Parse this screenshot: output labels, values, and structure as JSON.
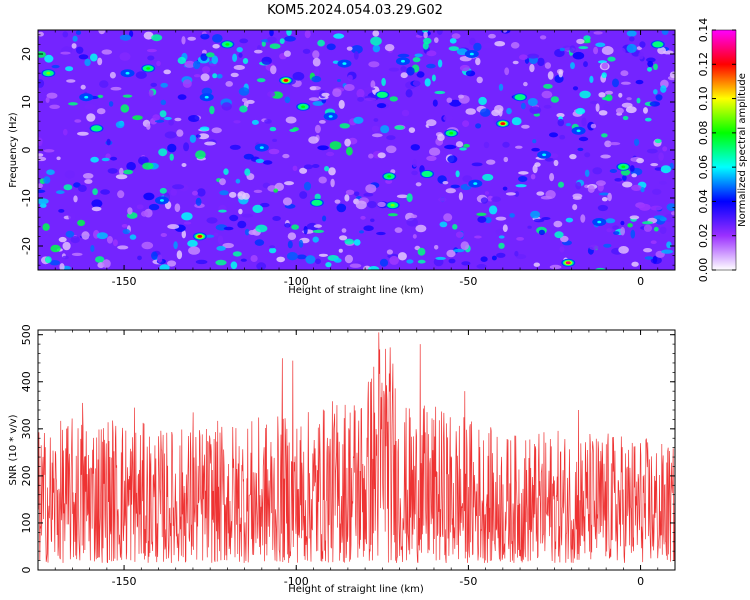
{
  "chart_data": [
    {
      "type": "heatmap",
      "title": "KOM5.2024.054.03.29.G02",
      "xlabel": "Height of straight line (km)",
      "ylabel": "Frequency (Hz)",
      "xlim": [
        -175,
        10
      ],
      "ylim": [
        -25,
        25
      ],
      "x_ticks": [
        -150,
        -100,
        -50,
        0
      ],
      "x_tick_labels": [
        "-150",
        "-100",
        "-50",
        "0"
      ],
      "y_ticks": [
        -20,
        -10,
        0,
        10,
        20
      ],
      "y_tick_labels": [
        "-20",
        "-10",
        "0",
        "10",
        "20"
      ],
      "colorbar": {
        "label": "Normalized spectral amplitude",
        "range": [
          0,
          0.14
        ],
        "ticks": [
          0,
          0.02,
          0.04,
          0.06,
          0.08,
          0.1,
          0.12,
          0.14
        ],
        "tick_labels": [
          "0.00",
          "0.02",
          "0.04",
          "0.06",
          "0.08",
          "0.10",
          "0.12",
          "0.14"
        ],
        "colors": [
          "#ffffff",
          "#9b30ff",
          "#0000ff",
          "#00ffff",
          "#00ff00",
          "#ffff00",
          "#ff0000",
          "#ff00ff"
        ]
      },
      "background_level": 0.025,
      "hotspots": [
        {
          "x": -172,
          "y": 16.0,
          "value": 0.09
        },
        {
          "x": -161,
          "y": 11.0,
          "value": 0.06
        },
        {
          "x": -158,
          "y": 4.5,
          "value": 0.07
        },
        {
          "x": -149,
          "y": 16.0,
          "value": 0.06
        },
        {
          "x": -143,
          "y": 17.0,
          "value": 0.08
        },
        {
          "x": -139,
          "y": -10.5,
          "value": 0.06
        },
        {
          "x": -128,
          "y": -18.0,
          "value": 0.12
        },
        {
          "x": -126,
          "y": 11.0,
          "value": 0.06
        },
        {
          "x": -120,
          "y": 22.0,
          "value": 0.08
        },
        {
          "x": -110,
          "y": 0.5,
          "value": 0.06
        },
        {
          "x": -103,
          "y": 14.5,
          "value": 0.12
        },
        {
          "x": -98,
          "y": 9.0,
          "value": 0.08
        },
        {
          "x": -94,
          "y": -11.0,
          "value": 0.07
        },
        {
          "x": -90,
          "y": 7.0,
          "value": 0.06
        },
        {
          "x": -86,
          "y": 18.0,
          "value": 0.06
        },
        {
          "x": -75,
          "y": 11.5,
          "value": 0.07
        },
        {
          "x": -73,
          "y": -5.5,
          "value": 0.08
        },
        {
          "x": -72,
          "y": -11.5,
          "value": 0.09
        },
        {
          "x": -69,
          "y": 18.5,
          "value": 0.06
        },
        {
          "x": -62,
          "y": -5.0,
          "value": 0.07
        },
        {
          "x": -55,
          "y": 3.5,
          "value": 0.08
        },
        {
          "x": -49,
          "y": 20.0,
          "value": 0.06
        },
        {
          "x": -48,
          "y": -7.0,
          "value": 0.06
        },
        {
          "x": -40,
          "y": 5.5,
          "value": 0.12
        },
        {
          "x": -35,
          "y": 11.0,
          "value": 0.07
        },
        {
          "x": -28,
          "y": -1.0,
          "value": 0.06
        },
        {
          "x": -21,
          "y": -23.5,
          "value": 0.13
        },
        {
          "x": -18,
          "y": 4.0,
          "value": 0.06
        },
        {
          "x": -12,
          "y": -15.0,
          "value": 0.06
        },
        {
          "x": -5,
          "y": -3.5,
          "value": 0.08
        },
        {
          "x": 5,
          "y": 22.0,
          "value": 0.07
        }
      ]
    },
    {
      "type": "line",
      "xlabel": "Height of straight line (km)",
      "ylabel": "SNR (10 * v/v)",
      "xlim": [
        -175,
        10
      ],
      "ylim": [
        0,
        510
      ],
      "x_ticks": [
        -150,
        -100,
        -50,
        0
      ],
      "x_tick_labels": [
        "-150",
        "-100",
        "-50",
        "0"
      ],
      "y_ticks": [
        0,
        100,
        200,
        300,
        400,
        500
      ],
      "y_tick_labels": [
        "0",
        "100",
        "200",
        "300",
        "400",
        "500"
      ],
      "color": "#ee3333",
      "envelope": {
        "x": [
          -175,
          -160,
          -150,
          -140,
          -120,
          -100,
          -90,
          -80,
          -76,
          -72,
          -70,
          -60,
          -50,
          -40,
          -20,
          0,
          10
        ],
        "y": [
          300,
          340,
          330,
          300,
          320,
          330,
          360,
          400,
          510,
          480,
          350,
          350,
          330,
          290,
          300,
          290,
          260
        ]
      },
      "peaks": [
        {
          "x": -162,
          "y": 355
        },
        {
          "x": -147,
          "y": 345
        },
        {
          "x": -130,
          "y": 335
        },
        {
          "x": -104,
          "y": 450
        },
        {
          "x": -101,
          "y": 445
        },
        {
          "x": -79,
          "y": 400
        },
        {
          "x": -76,
          "y": 505
        },
        {
          "x": -74,
          "y": 470
        },
        {
          "x": -72,
          "y": 385
        },
        {
          "x": -64,
          "y": 480
        },
        {
          "x": -51,
          "y": 380
        },
        {
          "x": -18,
          "y": 340
        },
        {
          "x": 8,
          "y": 260
        }
      ]
    }
  ]
}
